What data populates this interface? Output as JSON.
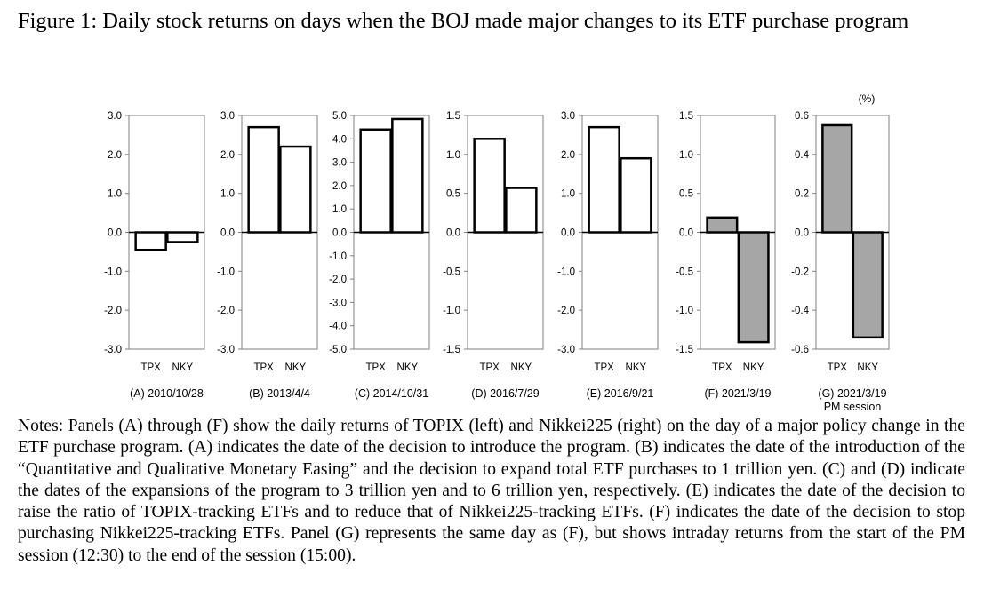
{
  "figure": {
    "title": "Figure 1: Daily stock returns on days when the BOJ made major changes to its ETF purchase program",
    "unit_label": "(%)",
    "notes": "Notes: Panels (A) through (F) show the daily returns of TOPIX (left) and Nikkei225 (right) on the day of a major policy change in the ETF purchase program. (A) indicates the date of the decision to introduce the program. (B) indicates the date of the introduction of the “Quantitative and Qualitative Monetary Easing” and the decision to expand total ETF purchases to 1 trillion yen. (C) and (D) indicate the dates of the expansions of the program to 3 trillion yen and to 6 trillion yen, respectively. (E) indicates the date of the decision to raise the ratio of TOPIX-tracking ETFs and to reduce that of Nikkei225-tracking ETFs. (F) indicates the date of the decision to stop purchasing Nikkei225-tracking ETFs. Panel (G) represents the same day as (F), but shows intraday returns from the start of the PM session (12:30) to the end of the session (15:00)."
  },
  "colors": {
    "outline": "#000000",
    "hollow_fill": "#ffffff",
    "gray_fill": "#a6a6a6"
  },
  "chart_data": [
    {
      "type": "bar",
      "panel": "A",
      "label": "(A) 2010/10/28",
      "categories": [
        "TPX",
        "NKY"
      ],
      "values": [
        -0.45,
        -0.25
      ],
      "ylim": [
        -3.0,
        3.0
      ],
      "yticks": [
        "-3.0",
        "-2.0",
        "-1.0",
        "0.0",
        "1.0",
        "2.0",
        "3.0"
      ],
      "fill": "white"
    },
    {
      "type": "bar",
      "panel": "B",
      "label": "(B) 2013/4/4",
      "categories": [
        "TPX",
        "NKY"
      ],
      "values": [
        2.7,
        2.2
      ],
      "ylim": [
        -3.0,
        3.0
      ],
      "yticks": [
        "-3.0",
        "-2.0",
        "-1.0",
        "0.0",
        "1.0",
        "2.0",
        "3.0"
      ],
      "fill": "white"
    },
    {
      "type": "bar",
      "panel": "C",
      "label": "(C) 2014/10/31",
      "categories": [
        "TPX",
        "NKY"
      ],
      "values": [
        4.4,
        4.85
      ],
      "ylim": [
        -5.0,
        5.0
      ],
      "yticks": [
        "-5.0",
        "-4.0",
        "-3.0",
        "-2.0",
        "-1.0",
        "0.0",
        "1.0",
        "2.0",
        "3.0",
        "4.0",
        "5.0"
      ],
      "fill": "white"
    },
    {
      "type": "bar",
      "panel": "D",
      "label": "(D) 2016/7/29",
      "categories": [
        "TPX",
        "NKY"
      ],
      "values": [
        1.2,
        0.57
      ],
      "ylim": [
        -1.5,
        1.5
      ],
      "yticks": [
        "-1.5",
        "-1.0",
        "-0.5",
        "0.0",
        "0.5",
        "1.0",
        "1.5"
      ],
      "fill": "white"
    },
    {
      "type": "bar",
      "panel": "E",
      "label": "(E) 2016/9/21",
      "categories": [
        "TPX",
        "NKY"
      ],
      "values": [
        2.7,
        1.9
      ],
      "ylim": [
        -3.0,
        3.0
      ],
      "yticks": [
        "-3.0",
        "-2.0",
        "-1.0",
        "0.0",
        "1.0",
        "2.0",
        "3.0"
      ],
      "fill": "white"
    },
    {
      "type": "bar",
      "panel": "F",
      "label": "(F) 2021/3/19",
      "categories": [
        "TPX",
        "NKY"
      ],
      "values": [
        0.19,
        -1.41
      ],
      "ylim": [
        -1.5,
        1.5
      ],
      "yticks": [
        "-1.5",
        "-1.0",
        "-0.5",
        "0.0",
        "0.5",
        "1.0",
        "1.5"
      ],
      "fill": "gray"
    },
    {
      "type": "bar",
      "panel": "G",
      "label": "(G) 2021/3/19",
      "sublabel": "PM session",
      "categories": [
        "TPX",
        "NKY"
      ],
      "values": [
        0.55,
        -0.54
      ],
      "ylim": [
        -0.6,
        0.6
      ],
      "yticks": [
        "-0.6",
        "-0.4",
        "-0.2",
        "0.0",
        "0.2",
        "0.4",
        "0.6"
      ],
      "fill": "gray"
    }
  ]
}
